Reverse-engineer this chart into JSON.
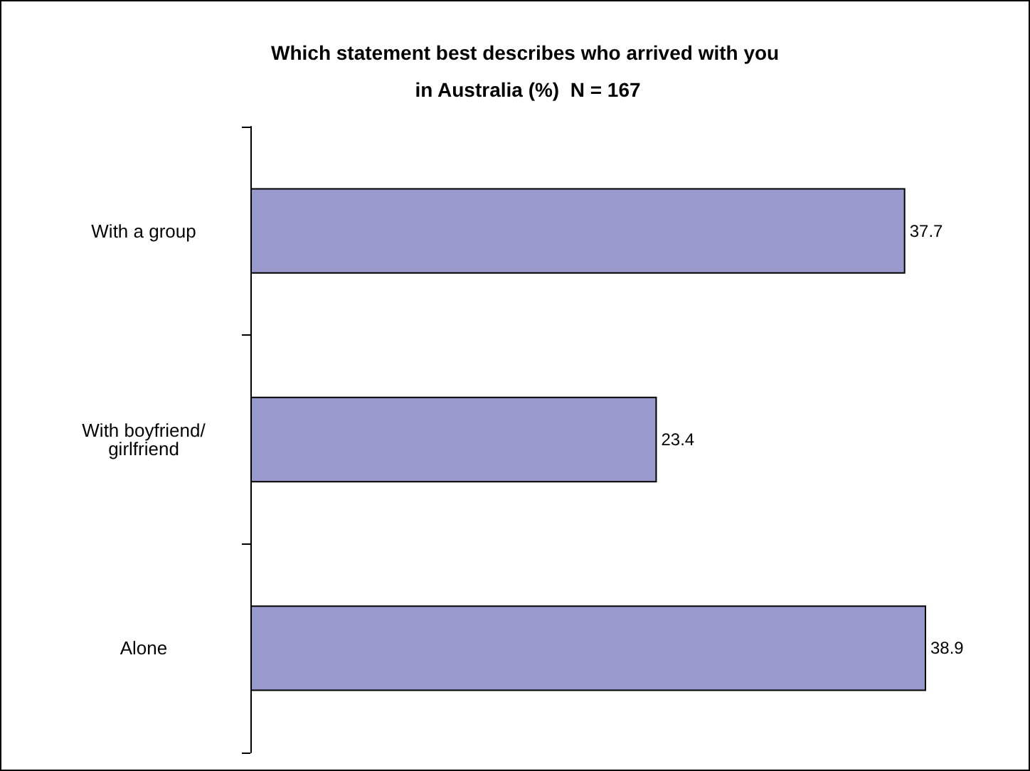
{
  "chart_data": {
    "type": "bar",
    "orientation": "horizontal",
    "title": "Which statement best describes who arrived with you in Australia (%)  N = 167",
    "categories": [
      "With a group",
      "With boyfriend/girlfriend",
      "Alone"
    ],
    "values": [
      37.7,
      23.4,
      38.9
    ],
    "color": "#9999cc",
    "data_labels": true,
    "grid": false,
    "legend": false
  }
}
